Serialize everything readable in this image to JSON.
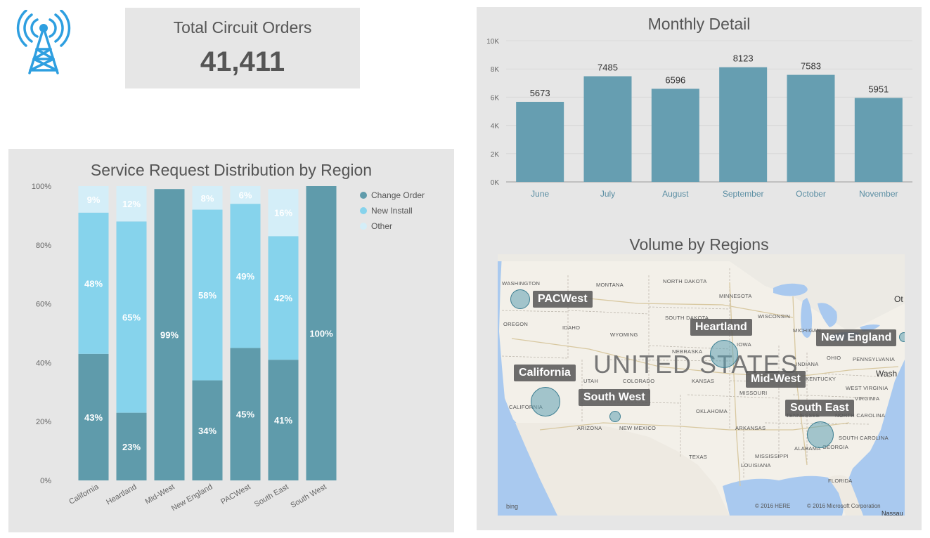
{
  "colors": {
    "change_order": "#5f9bab",
    "new_install": "#86d3ec",
    "other": "#d4eef8",
    "bar": "#669eb1",
    "panel": "#e6e6e6",
    "logo": "#2e9fe0"
  },
  "logo": {
    "icon": "radio-tower-icon"
  },
  "kpi": {
    "title": "Total Circuit Orders",
    "value": "41,411"
  },
  "chart_data": [
    {
      "type": "bar",
      "stacked": "100%",
      "title": "Service Request Distribution by Region",
      "categories": [
        "California",
        "Heartland",
        "Mid-West",
        "New England",
        "PACWest",
        "South East",
        "South West"
      ],
      "series": [
        {
          "name": "Change Order",
          "values": [
            43,
            23,
            99,
            34,
            45,
            41,
            100
          ],
          "labels": [
            "43%",
            "23%",
            "99%",
            "34%",
            "45%",
            "41%",
            "100%"
          ]
        },
        {
          "name": "New Install",
          "values": [
            48,
            65,
            0,
            58,
            49,
            42,
            0
          ],
          "labels": [
            "48%",
            "65%",
            "",
            "58%",
            "49%",
            "42%",
            ""
          ]
        },
        {
          "name": "Other",
          "values": [
            9,
            12,
            0,
            8,
            6,
            16,
            0
          ],
          "labels": [
            "9%",
            "12%",
            "",
            "8%",
            "6%",
            "16%",
            ""
          ]
        }
      ],
      "y_ticks": [
        "0%",
        "20%",
        "40%",
        "60%",
        "80%",
        "100%"
      ],
      "ylim": [
        0,
        100
      ],
      "legend": "top-right",
      "grid": false
    },
    {
      "type": "bar",
      "title": "Monthly Detail",
      "categories": [
        "June",
        "July",
        "August",
        "September",
        "October",
        "November"
      ],
      "values": [
        5673,
        7485,
        6596,
        8123,
        7583,
        5951
      ],
      "value_labels": [
        "5673",
        "7485",
        "6596",
        "8123",
        "7583",
        "5951"
      ],
      "y_ticks": [
        "0K",
        "2K",
        "4K",
        "6K",
        "8K",
        "10K"
      ],
      "ylim": [
        0,
        10000
      ],
      "grid": true
    }
  ],
  "map": {
    "title": "Volume by Regions",
    "country": "UNITED STATES",
    "regions": [
      {
        "name": "PACWest"
      },
      {
        "name": "Heartland"
      },
      {
        "name": "New England"
      },
      {
        "name": "California"
      },
      {
        "name": "Mid-West"
      },
      {
        "name": "South West"
      },
      {
        "name": "South East"
      }
    ],
    "states": [
      "WASHINGTON",
      "MONTANA",
      "NORTH DAKOTA",
      "MINNESOTA",
      "OREGON",
      "IDAHO",
      "SOUTH DAKOTA",
      "WISCONSIN",
      "WYOMING",
      "MICHIGAN",
      "NEBRASKA",
      "IOWA",
      "OHIO",
      "PENNSYLVANIA",
      "INDIANA",
      "UTAH",
      "COLORADO",
      "KANSAS",
      "MISSOURI",
      "KENTUCKY",
      "WEST VIRGINIA",
      "VIRGINIA",
      "CALIFORNIA",
      "OKLAHOMA",
      "TENNESSEE",
      "NORTH CAROLINA",
      "ARIZONA",
      "NEW MEXICO",
      "ARKANSAS",
      "SOUTH CAROLINA",
      "ALABAMA",
      "GEORGIA",
      "MISSISSIPPI",
      "TEXAS",
      "LOUISIANA",
      "FLORIDA"
    ],
    "cities": [
      "Ot",
      "Wash",
      "Nassau"
    ],
    "provider": "bing",
    "copyright": [
      "© 2016 HERE",
      "© 2016 Microsoft Corporation"
    ]
  }
}
